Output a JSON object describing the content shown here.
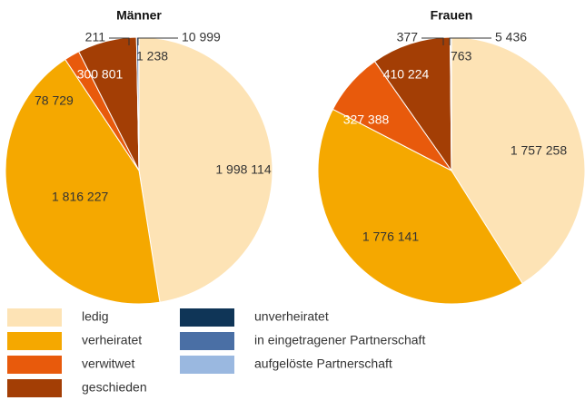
{
  "chart_data": [
    {
      "type": "pie",
      "title": "Männer",
      "values": [
        1998114,
        1816227,
        78729,
        300801,
        211,
        10999,
        1238
      ],
      "value_labels": [
        "1 998 114",
        "1 816 227",
        "78 729",
        "300 801",
        "211",
        "10 999",
        "1 238"
      ]
    },
    {
      "type": "pie",
      "title": "Frauen",
      "values": [
        1757258,
        1776141,
        327388,
        410224,
        377,
        5436,
        763
      ],
      "value_labels": [
        "1 757 258",
        "1 776 141",
        "327 388",
        "410 224",
        "377",
        "5 436",
        "763"
      ]
    }
  ],
  "legend": {
    "labels": [
      "ledig",
      "verheiratet",
      "verwitwet",
      "geschieden",
      "unverheiratet",
      "in eingetragener Partnerschaft",
      "aufgelöste Partnerschaft"
    ],
    "colors": [
      "#fde3b5",
      "#f5a800",
      "#e85a0c",
      "#a33e05",
      "#0f3557",
      "#4a6fa5",
      "#9ab8e0"
    ]
  }
}
